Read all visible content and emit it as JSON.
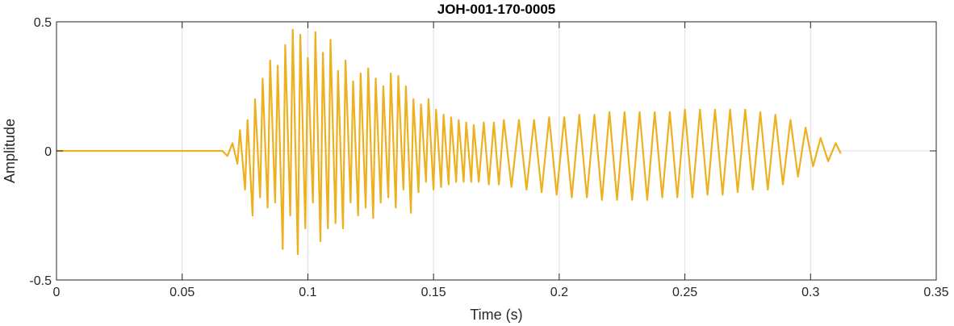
{
  "chart_data": {
    "type": "line",
    "title": "JOH-001-170-0005",
    "xlabel": "Time (s)",
    "ylabel": "Amplitude",
    "xlim": [
      0,
      0.35
    ],
    "ylim": [
      -0.5,
      0.5
    ],
    "grid": true,
    "x_ticks": [
      0,
      0.05,
      0.1,
      0.15,
      0.2,
      0.25,
      0.3,
      0.35
    ],
    "x_tick_labels": [
      "0",
      "0.05",
      "0.1",
      "0.15",
      "0.2",
      "0.25",
      "0.3",
      "0.35"
    ],
    "y_ticks": [
      -0.5,
      0,
      0.5
    ],
    "y_tick_labels": [
      "-0.5",
      "0",
      "0.5"
    ],
    "series_color": "#EDB120",
    "series": [
      {
        "x": [
          0,
          0.02,
          0.04,
          0.066,
          0.068,
          0.07,
          0.072,
          0.073,
          0.075,
          0.076,
          0.078,
          0.079,
          0.081,
          0.082,
          0.084,
          0.085,
          0.087,
          0.088,
          0.09,
          0.091,
          0.093,
          0.094,
          0.096,
          0.097,
          0.099,
          0.1,
          0.102,
          0.103,
          0.105,
          0.106,
          0.108,
          0.109,
          0.111,
          0.112,
          0.114,
          0.115,
          0.117,
          0.118,
          0.12,
          0.121,
          0.123,
          0.124,
          0.126,
          0.127,
          0.129,
          0.13,
          0.132,
          0.133,
          0.135,
          0.136,
          0.138,
          0.139,
          0.141,
          0.142,
          0.144,
          0.145,
          0.147,
          0.148,
          0.15,
          0.151,
          0.153,
          0.154,
          0.156,
          0.157,
          0.159,
          0.16,
          0.162,
          0.163,
          0.165,
          0.166,
          0.168,
          0.17,
          0.172,
          0.174,
          0.176,
          0.178,
          0.181,
          0.184,
          0.187,
          0.19,
          0.193,
          0.196,
          0.199,
          0.202,
          0.205,
          0.208,
          0.211,
          0.214,
          0.217,
          0.22,
          0.223,
          0.226,
          0.229,
          0.232,
          0.235,
          0.238,
          0.241,
          0.244,
          0.247,
          0.25,
          0.253,
          0.256,
          0.259,
          0.262,
          0.265,
          0.268,
          0.271,
          0.274,
          0.277,
          0.28,
          0.283,
          0.286,
          0.289,
          0.292,
          0.295,
          0.298,
          0.301,
          0.304,
          0.307,
          0.31,
          0.312
        ],
        "y": [
          0,
          0,
          0,
          0,
          -0.02,
          0.03,
          -0.05,
          0.08,
          -0.15,
          0.12,
          -0.25,
          0.2,
          -0.18,
          0.28,
          -0.22,
          0.35,
          -0.2,
          0.33,
          -0.38,
          0.41,
          -0.25,
          0.47,
          -0.4,
          0.45,
          -0.3,
          0.36,
          -0.2,
          0.46,
          -0.35,
          0.38,
          -0.3,
          0.43,
          -0.28,
          0.31,
          -0.3,
          0.35,
          -0.2,
          0.27,
          -0.25,
          0.3,
          -0.22,
          0.32,
          -0.26,
          0.28,
          -0.2,
          0.25,
          -0.18,
          0.3,
          -0.22,
          0.29,
          -0.15,
          0.25,
          -0.24,
          0.2,
          -0.16,
          0.18,
          -0.12,
          0.2,
          -0.15,
          0.16,
          -0.14,
          0.14,
          -0.13,
          0.13,
          -0.12,
          0.12,
          -0.12,
          0.11,
          -0.12,
          0.1,
          -0.12,
          0.11,
          -0.13,
          0.11,
          -0.13,
          0.12,
          -0.14,
          0.12,
          -0.15,
          0.12,
          -0.16,
          0.13,
          -0.17,
          0.13,
          -0.18,
          0.14,
          -0.18,
          0.14,
          -0.19,
          0.15,
          -0.19,
          0.15,
          -0.19,
          0.15,
          -0.19,
          0.15,
          -0.18,
          0.15,
          -0.18,
          0.16,
          -0.18,
          0.16,
          -0.17,
          0.16,
          -0.17,
          0.16,
          -0.16,
          0.16,
          -0.15,
          0.15,
          -0.15,
          0.14,
          -0.13,
          0.12,
          -0.1,
          0.09,
          -0.06,
          0.05,
          -0.04,
          0.03,
          -0.01
        ]
      }
    ]
  }
}
